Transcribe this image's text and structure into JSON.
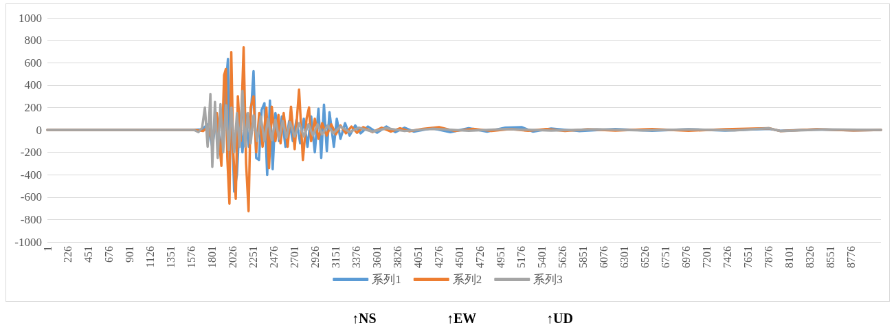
{
  "chart_data": {
    "type": "line",
    "xlim": [
      1,
      9100
    ],
    "xticks": [
      1,
      226,
      451,
      676,
      901,
      1126,
      1351,
      1576,
      1801,
      2026,
      2251,
      2476,
      2701,
      2926,
      3151,
      3376,
      3601,
      3826,
      4051,
      4276,
      4501,
      4726,
      4951,
      5176,
      5401,
      5626,
      5851,
      6076,
      6301,
      6526,
      6751,
      6976,
      7201,
      7426,
      7651,
      7876,
      8101,
      8326,
      8551,
      8776
    ],
    "ylim": [
      -1000,
      1000
    ],
    "yticks": [
      -1000,
      -800,
      -600,
      -400,
      -200,
      0,
      200,
      400,
      600,
      800,
      1000
    ],
    "grid": "y",
    "legend": "bottom",
    "marker": "none",
    "annotations": [
      "↑NS",
      "↑EW",
      "↑UD"
    ],
    "series": [
      {
        "name": "系列1",
        "color": "#5b9bd5",
        "x": [
          1,
          1600,
          1690,
          1750,
          1800,
          1850,
          1900,
          1940,
          1972,
          1990,
          2010,
          2040,
          2070,
          2100,
          2130,
          2160,
          2200,
          2251,
          2280,
          2310,
          2340,
          2370,
          2400,
          2430,
          2460,
          2490,
          2530,
          2560,
          2600,
          2640,
          2680,
          2720,
          2760,
          2800,
          2840,
          2880,
          2920,
          2960,
          2990,
          3020,
          3051,
          3080,
          3128,
          3160,
          3200,
          3250,
          3300,
          3361,
          3420,
          3500,
          3600,
          3700,
          3800,
          3900,
          4000,
          4200,
          4400,
          4600,
          4800,
          5000,
          5176,
          5300,
          5500,
          5800,
          6200,
          6600,
          7000,
          7400,
          7876,
          8000,
          8400,
          8800,
          9100
        ],
        "values": [
          0,
          0,
          5,
          50,
          -150,
          120,
          -200,
          300,
          634,
          -300,
          200,
          -550,
          -400,
          100,
          -200,
          150,
          -150,
          524,
          -250,
          -268,
          180,
          238,
          -402,
          262,
          -350,
          150,
          -100,
          120,
          -150,
          80,
          -100,
          90,
          -120,
          100,
          -150,
          120,
          -200,
          189,
          -250,
          225,
          -189,
          158,
          -150,
          100,
          -80,
          60,
          -50,
          40,
          -30,
          30,
          -25,
          30,
          -20,
          20,
          -15,
          15,
          -20,
          15,
          -15,
          20,
          25,
          -15,
          12,
          -10,
          8,
          -8,
          6,
          -6,
          10,
          -8,
          5,
          -5,
          0
        ]
      },
      {
        "name": "系列2",
        "color": "#ed7d31",
        "x": [
          1,
          1600,
          1700,
          1760,
          1800,
          1850,
          1900,
          1930,
          1949,
          1965,
          1988,
          2008,
          2030,
          2057,
          2080,
          2110,
          2143,
          2170,
          2197,
          2220,
          2251,
          2280,
          2313,
          2350,
          2391,
          2420,
          2450,
          2490,
          2523,
          2546,
          2580,
          2624,
          2660,
          2700,
          2748,
          2790,
          2830,
          2857,
          2880,
          2920,
          2960,
          3000,
          3050,
          3100,
          3150,
          3200,
          3260,
          3320,
          3380,
          3450,
          3550,
          3650,
          3750,
          3850,
          3950,
          4100,
          4276,
          4450,
          4650,
          4850,
          5050,
          5250,
          5450,
          5650,
          5900,
          6200,
          6600,
          7000,
          7400,
          7876,
          8000,
          8400,
          8800,
          9100
        ],
        "values": [
          0,
          0,
          -10,
          30,
          -100,
          150,
          -320,
          490,
          543,
          -250,
          -658,
          695,
          -200,
          -615,
          300,
          -100,
          738,
          -300,
          -725,
          200,
          299,
          -200,
          150,
          -150,
          200,
          -341,
          207,
          -100,
          134,
          -120,
          150,
          -150,
          207,
          -171,
          360,
          -268,
          100,
          200,
          -100,
          100,
          -80,
          60,
          -50,
          50,
          -40,
          40,
          -30,
          30,
          -25,
          25,
          -20,
          20,
          -15,
          15,
          -12,
          10,
          25,
          -10,
          10,
          -10,
          8,
          -8,
          8,
          -10,
          6,
          -6,
          8,
          -8,
          6,
          15,
          -10,
          6,
          -5,
          0
        ]
      },
      {
        "name": "系列3",
        "color": "#a5a5a5",
        "x": [
          1,
          1600,
          1650,
          1690,
          1720,
          1750,
          1780,
          1801,
          1830,
          1860,
          1890,
          1920,
          1950,
          1980,
          2010,
          2040,
          2070,
          2100,
          2130,
          2160,
          2190,
          2220,
          2251,
          2290,
          2330,
          2370,
          2410,
          2450,
          2490,
          2530,
          2570,
          2610,
          2650,
          2700,
          2750,
          2800,
          2850,
          2900,
          2950,
          3000,
          3060,
          3120,
          3200,
          3300,
          3400,
          3550,
          3700,
          3900,
          4200,
          4600,
          5000,
          5500,
          6000,
          6500,
          7000,
          7500,
          7876,
          8000,
          8500,
          9100
        ],
        "values": [
          0,
          0,
          -20,
          20,
          200,
          -150,
          320,
          -330,
          250,
          -250,
          230,
          -200,
          220,
          -180,
          200,
          -200,
          150,
          -150,
          348,
          -150,
          150,
          -120,
          130,
          -100,
          120,
          -100,
          100,
          -90,
          90,
          -80,
          80,
          -70,
          70,
          -60,
          60,
          -60,
          50,
          -50,
          50,
          -40,
          40,
          -30,
          30,
          -20,
          20,
          -15,
          15,
          -10,
          10,
          -8,
          8,
          -6,
          6,
          -5,
          5,
          -5,
          15,
          -10,
          5,
          0
        ]
      }
    ]
  }
}
